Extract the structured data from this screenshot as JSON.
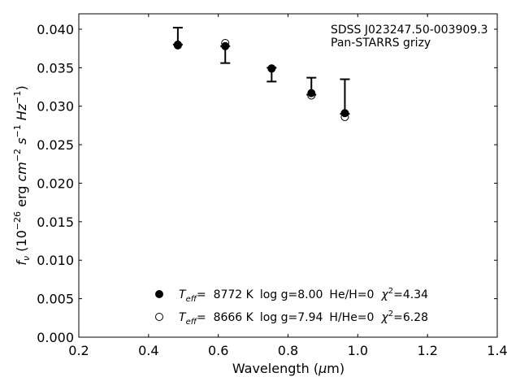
{
  "chart_data": {
    "type": "scatter",
    "title": "",
    "xlabel": "Wavelength (μm)",
    "ylabel": "fν (10⁻²⁶ erg cm⁻² s⁻¹ Hz⁻¹)",
    "xlim": [
      0.2,
      1.4
    ],
    "ylim": [
      0.0,
      0.042
    ],
    "xticks": [
      "0.2",
      "0.4",
      "0.6",
      "0.8",
      "1.0",
      "1.2",
      "1.4"
    ],
    "yticks": [
      "0.000",
      "0.005",
      "0.010",
      "0.015",
      "0.020",
      "0.025",
      "0.030",
      "0.035",
      "0.040"
    ],
    "grid": false,
    "annotation": [
      "SDSS J023247.50-003909.3",
      "Pan-STARRS grizy"
    ],
    "observed": {
      "x": [
        0.484,
        0.62,
        0.753,
        0.867,
        0.963
      ],
      "y": [
        0.038,
        0.0378,
        0.035,
        0.0317,
        0.029
      ],
      "err_low": [
        0.038,
        0.0356,
        0.0332,
        0.0315,
        0.029
      ],
      "err_high": [
        0.0402,
        0.0378,
        0.035,
        0.0337,
        0.0335
      ]
    },
    "series": [
      {
        "marker": "filled",
        "values": [
          0.0379,
          0.0378,
          0.0349,
          0.0317,
          0.0291
        ],
        "legend": {
          "teff_label": "T",
          "teff_sub": "eff",
          "teff_value": "=  8772 K",
          "logg": "log g=8.00",
          "comp": "He/H=0",
          "chi_label": "χ",
          "chi_exp": "2",
          "chi_value": "=4.34"
        }
      },
      {
        "marker": "open",
        "values": [
          0.038,
          0.0382,
          0.0349,
          0.0314,
          0.0286
        ],
        "legend": {
          "teff_label": "T",
          "teff_sub": "eff",
          "teff_value": "=  8666 K",
          "logg": "log g=7.94",
          "comp": "H/He=0",
          "chi_label": "χ",
          "chi_exp": "2",
          "chi_value": "=6.28"
        }
      }
    ],
    "legend_position": "bottom-center"
  }
}
